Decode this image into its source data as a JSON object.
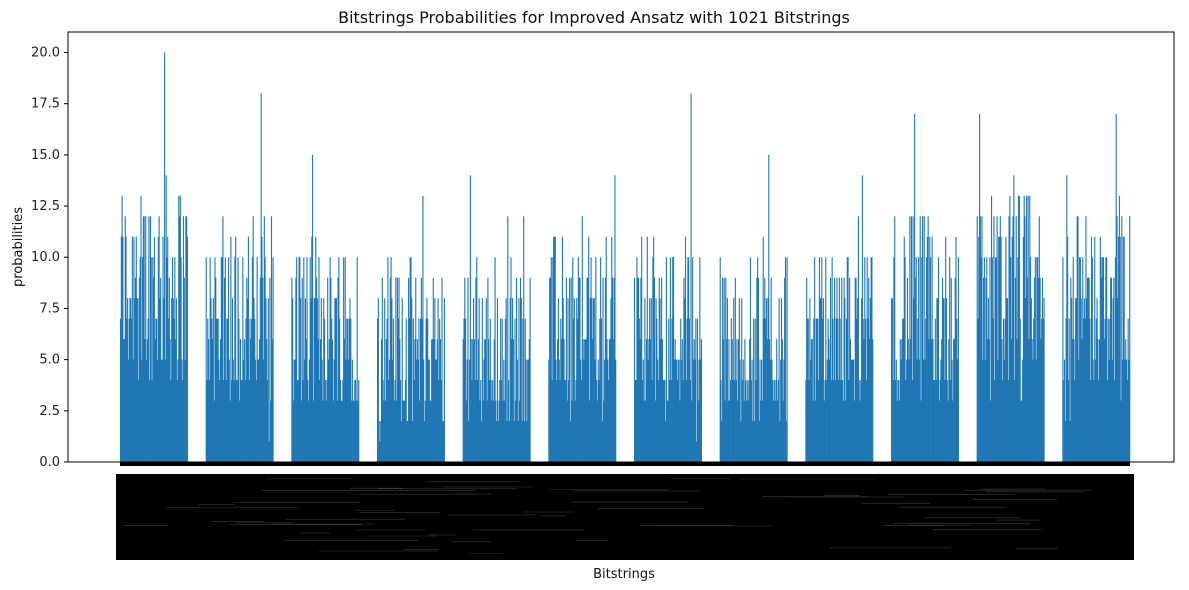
{
  "chart_data": {
    "type": "bar",
    "title": "Bitstrings Probabilities for Improved Ansatz with 1021 Bitstrings",
    "xlabel": "Bitstrings",
    "ylabel": "probabilities",
    "ylim": [
      0,
      21
    ],
    "y_ticks": [
      "0.0",
      "2.5",
      "5.0",
      "7.5",
      "10.0",
      "12.5",
      "15.0",
      "17.5",
      "20.0"
    ],
    "y_tick_values": [
      0,
      2.5,
      5,
      7.5,
      10,
      12.5,
      15,
      17.5,
      20
    ],
    "bar_color": "#1f77b4",
    "grid": false,
    "n_categories": 1021,
    "group_count": 12,
    "x_tick_labels_note": "1021 overlapping rotated bitstring tick labels rendered as black bands",
    "groups": [
      {
        "index": 1,
        "peak": 20,
        "typical_range": [
          4,
          14
        ]
      },
      {
        "index": 2,
        "peak": 18,
        "typical_range": [
          3,
          12
        ]
      },
      {
        "index": 3,
        "peak": 15,
        "typical_range": [
          3,
          11
        ]
      },
      {
        "index": 4,
        "peak": 13,
        "typical_range": [
          2,
          10
        ]
      },
      {
        "index": 5,
        "peak": 14,
        "typical_range": [
          2,
          10
        ]
      },
      {
        "index": 6,
        "peak": 14,
        "typical_range": [
          3,
          11
        ]
      },
      {
        "index": 7,
        "peak": 18,
        "typical_range": [
          3,
          11
        ]
      },
      {
        "index": 8,
        "peak": 15,
        "typical_range": [
          2,
          10
        ]
      },
      {
        "index": 9,
        "peak": 14,
        "typical_range": [
          3,
          10
        ]
      },
      {
        "index": 10,
        "peak": 17,
        "typical_range": [
          3,
          12
        ]
      },
      {
        "index": 11,
        "peak": 17,
        "typical_range": [
          4,
          13
        ]
      },
      {
        "index": 12,
        "peak": 17,
        "typical_range": [
          4,
          12
        ]
      }
    ]
  }
}
